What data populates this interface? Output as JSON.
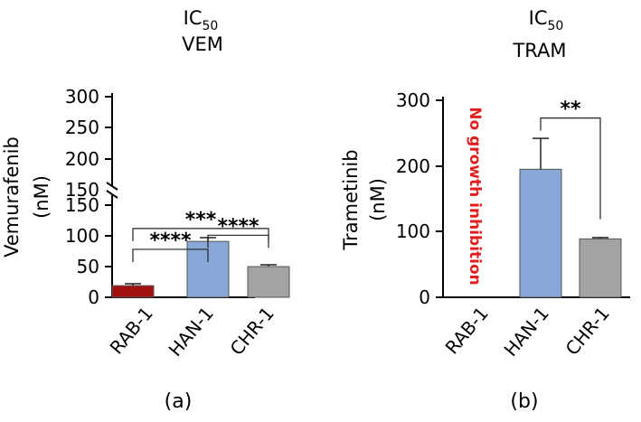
{
  "chart_data": [
    {
      "type": "bar",
      "panel_label": "(a)",
      "title": "IC50",
      "title_base": "IC",
      "title_sub": "50",
      "subtitle": "VEM",
      "ylabel": "Vemurafenib",
      "yunit": "(nM)",
      "categories": [
        "RAB-1",
        "HAN-1",
        "CHR-1"
      ],
      "values": [
        19,
        91,
        50
      ],
      "errors": [
        3,
        6,
        3
      ],
      "colors": [
        "#a31010",
        "#88a8d8",
        "#a3a3a6"
      ],
      "ylim": [
        0,
        300
      ],
      "axis_break": [
        150,
        150
      ],
      "yticks_lower": [
        "0",
        "50",
        "100",
        "150"
      ],
      "yticks_upper": [
        "150",
        "200",
        "250",
        "300"
      ],
      "significance": [
        {
          "from": 1,
          "to": 2,
          "label": "****",
          "level": 101
        },
        {
          "from": 0,
          "to": 1,
          "label": "****",
          "level": 78
        },
        {
          "from": 0,
          "to": 2,
          "label": "***",
          "level": 112
        }
      ]
    },
    {
      "type": "bar",
      "panel_label": "(b)",
      "title": "IC50",
      "title_base": "IC",
      "title_sub": "50",
      "subtitle": "TRAM",
      "ylabel": "Trametinib",
      "yunit": "(nM)",
      "categories": [
        "RAB-1",
        "HAN-1",
        "CHR-1"
      ],
      "values": [
        null,
        195,
        89
      ],
      "errors": [
        null,
        47,
        2
      ],
      "colors": [
        "#a31010",
        "#88a8d8",
        "#a3a3a6"
      ],
      "ylim": [
        0,
        300
      ],
      "yticks": [
        "0",
        "100",
        "200",
        "300"
      ],
      "annotation": "No growth inhibition",
      "annotation_color": "#e02020",
      "significance": [
        {
          "from": 1,
          "to": 2,
          "label": "**",
          "level": 273
        }
      ]
    }
  ]
}
